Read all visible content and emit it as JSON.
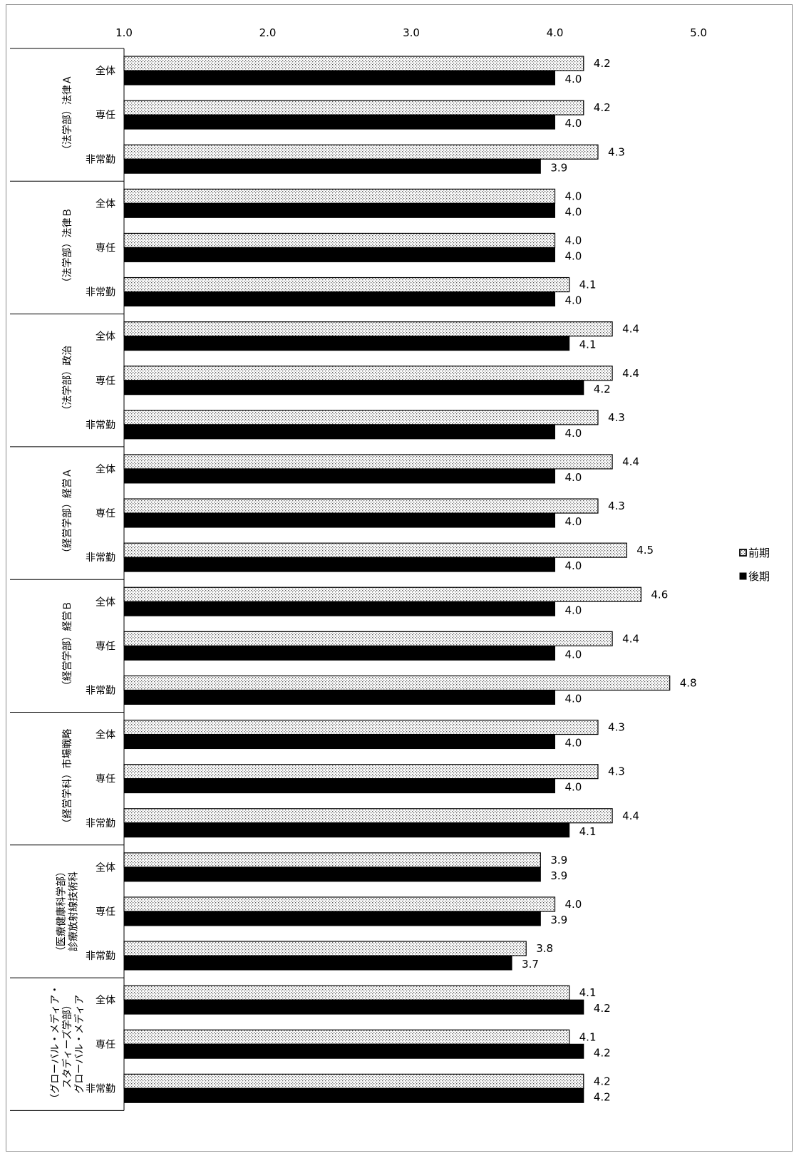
{
  "chart_data": {
    "type": "bar",
    "orientation": "horizontal",
    "title": "",
    "xlabel": "",
    "ylabel": "",
    "xlim": [
      1.0,
      5.0
    ],
    "x_ticks": [
      "1.0",
      "2.0",
      "3.0",
      "4.0",
      "5.0"
    ],
    "grid": false,
    "legend_position": "right",
    "series": [
      {
        "name": "前期",
        "pattern": "dotted",
        "color": "#000000",
        "fill": "#ffffff"
      },
      {
        "name": "後期",
        "pattern": "solid",
        "color": "#000000"
      }
    ],
    "groups": [
      {
        "label": [
          "（法学部）法律Ａ"
        ],
        "rows": [
          {
            "label": "全体",
            "values": [
              4.2,
              4.0
            ]
          },
          {
            "label": "専任",
            "values": [
              4.2,
              4.0
            ]
          },
          {
            "label": "非常勤",
            "values": [
              4.3,
              3.9
            ]
          }
        ]
      },
      {
        "label": [
          "（法学部）法律Ｂ"
        ],
        "rows": [
          {
            "label": "全体",
            "values": [
              4.0,
              4.0
            ]
          },
          {
            "label": "専任",
            "values": [
              4.0,
              4.0
            ]
          },
          {
            "label": "非常勤",
            "values": [
              4.1,
              4.0
            ]
          }
        ]
      },
      {
        "label": [
          "（法学部）政治"
        ],
        "rows": [
          {
            "label": "全体",
            "values": [
              4.4,
              4.1
            ]
          },
          {
            "label": "専任",
            "values": [
              4.4,
              4.2
            ]
          },
          {
            "label": "非常勤",
            "values": [
              4.3,
              4.0
            ]
          }
        ]
      },
      {
        "label": [
          "（経営学部）経営Ａ"
        ],
        "rows": [
          {
            "label": "全体",
            "values": [
              4.4,
              4.0
            ]
          },
          {
            "label": "専任",
            "values": [
              4.3,
              4.0
            ]
          },
          {
            "label": "非常勤",
            "values": [
              4.5,
              4.0
            ]
          }
        ]
      },
      {
        "label": [
          "（経営学部）経営Ｂ"
        ],
        "rows": [
          {
            "label": "全体",
            "values": [
              4.6,
              4.0
            ]
          },
          {
            "label": "専任",
            "values": [
              4.4,
              4.0
            ]
          },
          {
            "label": "非常勤",
            "values": [
              4.8,
              4.0
            ]
          }
        ]
      },
      {
        "label": [
          "（経営学科）市場戦略"
        ],
        "rows": [
          {
            "label": "全体",
            "values": [
              4.3,
              4.0
            ]
          },
          {
            "label": "専任",
            "values": [
              4.3,
              4.0
            ]
          },
          {
            "label": "非常勤",
            "values": [
              4.4,
              4.1
            ]
          }
        ]
      },
      {
        "label": [
          "（医療健康科学部）",
          "診療放射線技術科"
        ],
        "rows": [
          {
            "label": "全体",
            "values": [
              3.9,
              3.9
            ]
          },
          {
            "label": "専任",
            "values": [
              4.0,
              3.9
            ]
          },
          {
            "label": "非常勤",
            "values": [
              3.8,
              3.7
            ]
          }
        ]
      },
      {
        "label": [
          "（グローバル・メディア・",
          "スタディーズ学部）",
          "グローバル・メディア"
        ],
        "rows": [
          {
            "label": "全体",
            "values": [
              4.1,
              4.2
            ]
          },
          {
            "label": "専任",
            "values": [
              4.1,
              4.2
            ]
          },
          {
            "label": "非常勤",
            "values": [
              4.2,
              4.2
            ]
          }
        ]
      }
    ]
  }
}
